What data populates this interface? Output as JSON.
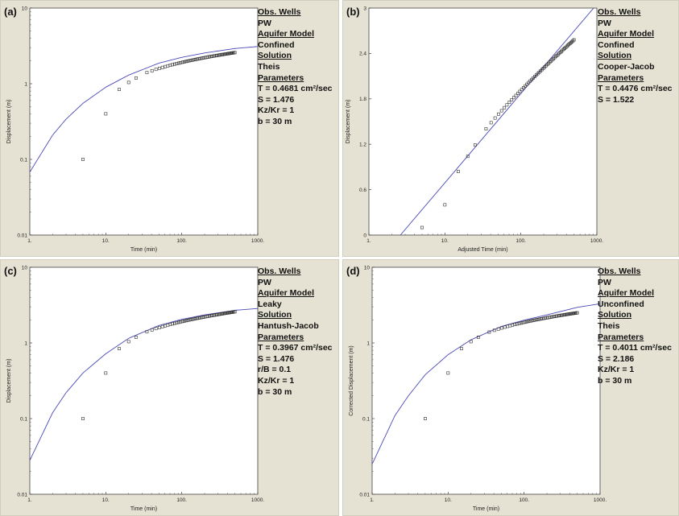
{
  "chart_data": [
    {
      "panel": "(a)",
      "type": "scatter",
      "xscale": "log",
      "yscale": "log",
      "xlim": [
        1,
        1000
      ],
      "ylim": [
        0.01,
        10
      ],
      "xticks": [
        "1.",
        "10.",
        "100.",
        "1000."
      ],
      "yticks": [
        "0.01",
        "0.1",
        "1",
        "10"
      ],
      "xlabel": "Time (min)",
      "ylabel": "Displacement (m)",
      "observed": {
        "x_start": 5,
        "x_end": 500,
        "count": 60,
        "first": [
          [
            5,
            0.1
          ],
          [
            10,
            0.4
          ],
          [
            15,
            0.84
          ],
          [
            20,
            1.04
          ],
          [
            25,
            1.19
          ]
        ],
        "y_end": 2.58
      },
      "fit_curve": {
        "x": [
          1,
          2,
          3,
          5,
          10,
          20,
          50,
          100,
          200,
          500,
          1000
        ],
        "y": [
          0.068,
          0.21,
          0.34,
          0.55,
          0.9,
          1.3,
          1.87,
          2.23,
          2.55,
          2.92,
          3.1
        ]
      },
      "legend": [
        "Obs. Wells",
        "PW",
        "Aquifer Model",
        "Confined",
        "Solution",
        "Theis",
        "Parameters",
        "T = 0.4681 cm²/sec",
        "S = 1.476",
        "Kz/Kr = 1",
        "b = 30 m"
      ]
    },
    {
      "panel": "(b)",
      "type": "scatter",
      "xscale": "log",
      "yscale": "linear",
      "xlim": [
        1,
        1000
      ],
      "ylim": [
        0,
        3
      ],
      "xticks": [
        "1.",
        "10.",
        "100.",
        "1000."
      ],
      "yticks": [
        "0",
        "0.6",
        "1.2",
        "1.8",
        "2.4",
        "3"
      ],
      "xlabel": "Adjusted Time (min)",
      "ylabel": "Displacement (m)",
      "observed": {
        "x_start": 5,
        "x_end": 500,
        "count": 60,
        "first": [
          [
            5,
            0.1
          ],
          [
            10,
            0.4
          ],
          [
            15,
            0.84
          ],
          [
            20,
            1.04
          ],
          [
            25,
            1.19
          ]
        ],
        "y_end": 2.58
      },
      "fit_curve": {
        "x": [
          2.6,
          1000
        ],
        "y": [
          0,
          3.05
        ]
      },
      "legend": [
        "Obs. Wells",
        "PW",
        "Aquifer Model",
        "Confined",
        "Solution",
        "Cooper-Jacob",
        "Parameters",
        "T = 0.4476 cm²/sec",
        "S = 1.522"
      ]
    },
    {
      "panel": "(c)",
      "type": "scatter",
      "xscale": "log",
      "yscale": "log",
      "xlim": [
        1,
        1000
      ],
      "ylim": [
        0.01,
        10
      ],
      "xticks": [
        "1.",
        "10.",
        "100.",
        "1000."
      ],
      "yticks": [
        "0.01",
        "0.1",
        "1",
        "10"
      ],
      "xlabel": "Time (min)",
      "ylabel": "Displacement (m)",
      "observed": {
        "x_start": 5,
        "x_end": 500,
        "count": 60,
        "first": [
          [
            5,
            0.1
          ],
          [
            10,
            0.4
          ],
          [
            15,
            0.84
          ],
          [
            20,
            1.04
          ],
          [
            25,
            1.19
          ]
        ],
        "y_end": 2.58
      },
      "fit_curve": {
        "x": [
          1,
          2,
          3,
          5,
          10,
          20,
          50,
          100,
          200,
          500,
          1000
        ],
        "y": [
          0.028,
          0.12,
          0.22,
          0.4,
          0.72,
          1.15,
          1.7,
          2.05,
          2.35,
          2.7,
          2.85
        ]
      },
      "legend": [
        "Obs. Wells",
        "PW",
        "Aquifer Model",
        "Leaky",
        "Solution",
        "Hantush-Jacob",
        "Parameters",
        "T = 0.3967 cm²/sec",
        "S = 1.476",
        "r/B = 0.1",
        "Kz/Kr = 1",
        "b = 30 m"
      ]
    },
    {
      "panel": "(d)",
      "type": "scatter",
      "xscale": "log",
      "yscale": "log",
      "xlim": [
        1,
        1000
      ],
      "ylim": [
        0.01,
        10
      ],
      "xticks": [
        "1.",
        "10.",
        "100.",
        "1000."
      ],
      "yticks": [
        "0.01",
        "0.1",
        "1",
        "10"
      ],
      "xlabel": "Time (min)",
      "ylabel": "Corrected Displacement (m)",
      "observed": {
        "x_start": 5,
        "x_end": 500,
        "count": 60,
        "first": [
          [
            5,
            0.1
          ],
          [
            10,
            0.4
          ],
          [
            15,
            0.84
          ],
          [
            20,
            1.04
          ],
          [
            25,
            1.19
          ]
        ],
        "y_end": 2.5
      },
      "fit_curve": {
        "x": [
          1,
          2,
          3,
          5,
          10,
          20,
          50,
          100,
          200,
          500,
          1000
        ],
        "y": [
          0.025,
          0.11,
          0.2,
          0.38,
          0.7,
          1.1,
          1.65,
          2.0,
          2.35,
          2.95,
          3.3
        ]
      },
      "legend": [
        "Obs. Wells",
        "PW",
        "Aquifer Model",
        "Unconfined",
        "Solution",
        "Theis",
        "Parameters",
        "T = 0.4011 cm²/sec",
        "S = 2.186",
        "Kz/Kr = 1",
        "b = 30 m"
      ]
    }
  ],
  "colors": {
    "panel_bg": "#e6e2d3",
    "plot_bg": "#ffffff",
    "curve": "#4a4ab8",
    "marker": "#333333",
    "axis": "#444444"
  }
}
